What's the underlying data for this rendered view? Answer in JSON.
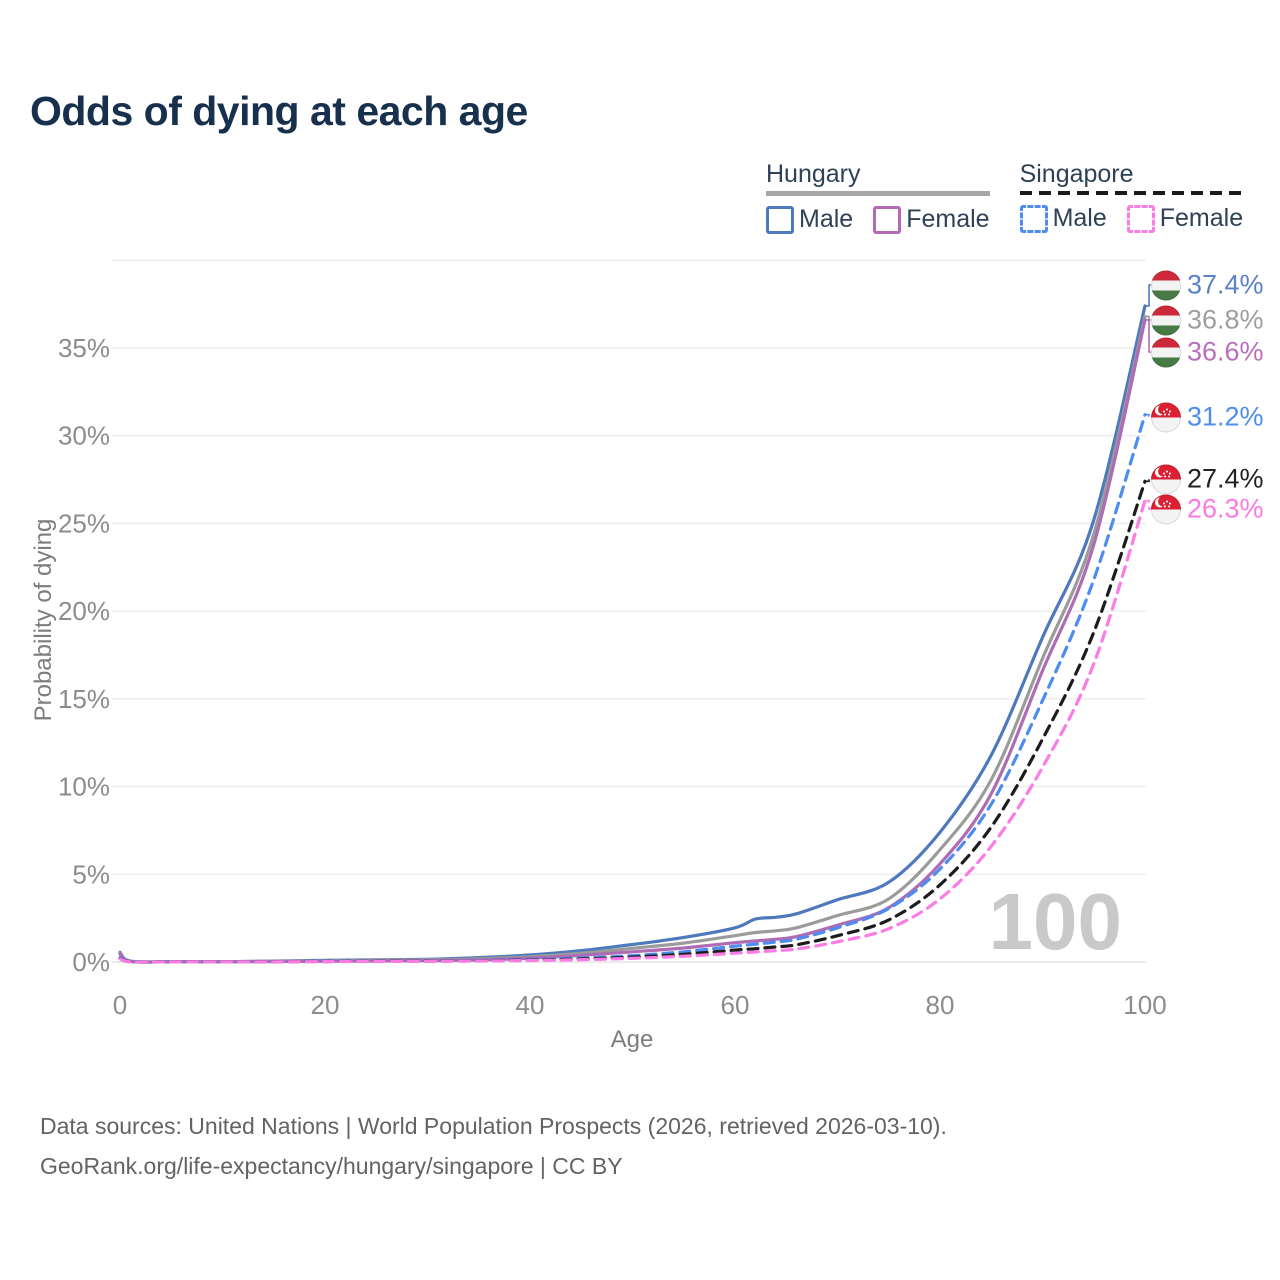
{
  "title": "Odds of dying at each age",
  "legend": {
    "groups": [
      {
        "country": "Hungary",
        "style": "solid",
        "items": [
          {
            "label": "Male",
            "color": "#4e79bd"
          },
          {
            "label": "Female",
            "color": "#b56ab8"
          }
        ]
      },
      {
        "country": "Singapore",
        "style": "dashed",
        "items": [
          {
            "label": "Male",
            "color": "#4d8cf0"
          },
          {
            "label": "Female",
            "color": "#fb7ce4"
          }
        ]
      }
    ]
  },
  "chart_data": {
    "type": "line",
    "title": "Odds of dying at each age",
    "xlabel": "Age",
    "ylabel": "Probability of dying",
    "x_ticks": [
      0,
      20,
      40,
      60,
      80,
      100
    ],
    "y_ticks_pct": [
      0,
      5,
      10,
      15,
      20,
      25,
      30,
      35
    ],
    "y_grid_pct": [
      0,
      5,
      10,
      15,
      20,
      25,
      30,
      35,
      40
    ],
    "xlim": [
      0,
      100
    ],
    "ylim_pct": [
      0,
      40
    ],
    "grid": true,
    "legend_position": "top-right",
    "age_marker": "100",
    "ages": [
      0,
      1,
      5,
      10,
      15,
      20,
      25,
      30,
      35,
      40,
      45,
      50,
      55,
      60,
      62,
      64,
      66,
      70,
      75,
      80,
      85,
      90,
      95,
      100
    ],
    "series": [
      {
        "id": "hungary-male",
        "name": "Hungary Male",
        "color": "#4e79bd",
        "dash": "solid",
        "flag": "hu",
        "end_label": "37.4%",
        "label_color": "#5b82c4",
        "values": [
          0.55,
          0.05,
          0.02,
          0.02,
          0.05,
          0.09,
          0.12,
          0.15,
          0.25,
          0.4,
          0.65,
          1.0,
          1.4,
          1.95,
          2.45,
          2.55,
          2.75,
          3.55,
          4.55,
          7.4,
          11.8,
          18.5,
          25.2,
          37.4
        ]
      },
      {
        "id": "hungary-total",
        "name": "Hungary Both sexes",
        "color": "#9b9b9b",
        "dash": "solid",
        "flag": "hu",
        "end_label": "36.8%",
        "label_color": "#9e9ea2",
        "values": [
          0.5,
          0.04,
          0.015,
          0.015,
          0.04,
          0.07,
          0.09,
          0.12,
          0.18,
          0.3,
          0.5,
          0.78,
          1.08,
          1.5,
          1.68,
          1.78,
          1.95,
          2.65,
          3.6,
          6.4,
          10.4,
          17.3,
          24.4,
          36.8
        ]
      },
      {
        "id": "hungary-female",
        "name": "Hungary Female",
        "color": "#ad6cb3",
        "dash": "solid",
        "flag": "hu",
        "end_label": "36.6%",
        "label_color": "#ba6fbe",
        "values": [
          0.45,
          0.035,
          0.01,
          0.01,
          0.03,
          0.04,
          0.06,
          0.08,
          0.12,
          0.22,
          0.38,
          0.58,
          0.8,
          1.1,
          1.2,
          1.3,
          1.45,
          2.1,
          3.1,
          5.6,
          9.6,
          16.6,
          23.8,
          36.6
        ]
      },
      {
        "id": "singapore-male",
        "name": "Singapore Male",
        "color": "#4d8cf0",
        "dash": "dashed",
        "flag": "sg",
        "end_label": "31.2%",
        "label_color": "#4d8cf0",
        "values": [
          0.25,
          0.02,
          0.01,
          0.01,
          0.02,
          0.04,
          0.05,
          0.06,
          0.09,
          0.14,
          0.22,
          0.36,
          0.58,
          0.9,
          1.02,
          1.14,
          1.3,
          1.95,
          3.05,
          5.3,
          9.0,
          14.9,
          21.8,
          31.2
        ]
      },
      {
        "id": "singapore-total",
        "name": "Singapore Both sexes",
        "color": "#1c1c1c",
        "dash": "dashed",
        "flag": "sg",
        "end_label": "27.4%",
        "label_color": "#222222",
        "values": [
          0.2,
          0.015,
          0.008,
          0.008,
          0.015,
          0.03,
          0.04,
          0.05,
          0.07,
          0.11,
          0.17,
          0.28,
          0.44,
          0.68,
          0.76,
          0.86,
          0.98,
          1.5,
          2.4,
          4.4,
          7.7,
          12.7,
          18.8,
          27.4
        ]
      },
      {
        "id": "singapore-female",
        "name": "Singapore Female",
        "color": "#fb7ce4",
        "dash": "dashed",
        "flag": "sg",
        "end_label": "26.3%",
        "label_color": "#fb7ae2",
        "values": [
          0.18,
          0.012,
          0.006,
          0.006,
          0.012,
          0.02,
          0.03,
          0.04,
          0.055,
          0.085,
          0.13,
          0.21,
          0.33,
          0.5,
          0.57,
          0.65,
          0.74,
          1.15,
          1.9,
          3.6,
          6.6,
          11.1,
          17.0,
          26.3
        ]
      }
    ]
  },
  "footer": {
    "line1": "Data sources: United Nations | World Population Prospects (2026, retrieved 2026-03-10).",
    "line2": "GeoRank.org/life-expectancy/hungary/singapore | CC BY"
  }
}
